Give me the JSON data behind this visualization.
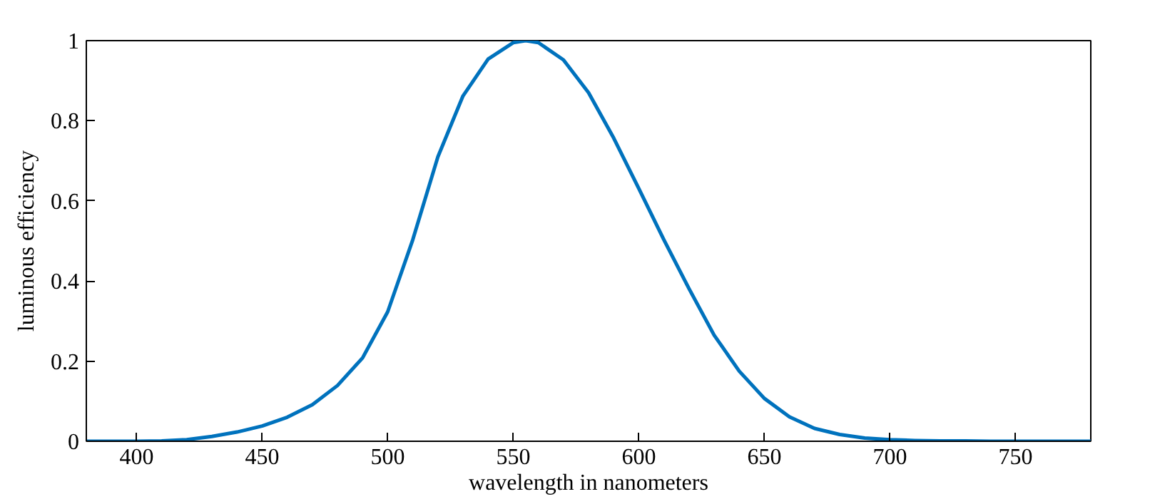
{
  "chart_data": {
    "type": "line",
    "xlabel": "wavelength in nanometers",
    "ylabel": "luminous efficiency",
    "x": [
      380,
      390,
      400,
      410,
      420,
      430,
      440,
      450,
      460,
      470,
      480,
      490,
      500,
      510,
      520,
      530,
      540,
      550,
      555,
      560,
      570,
      580,
      590,
      600,
      610,
      620,
      630,
      640,
      650,
      660,
      670,
      680,
      690,
      700,
      710,
      720,
      730,
      740,
      750,
      760,
      770,
      780
    ],
    "series": [
      {
        "color": "#0072bd",
        "values": [
          0.0,
          0.0,
          0.0,
          0.001,
          0.004,
          0.012,
          0.023,
          0.038,
          0.06,
          0.091,
          0.139,
          0.208,
          0.323,
          0.503,
          0.71,
          0.862,
          0.954,
          0.995,
          1.0,
          0.995,
          0.952,
          0.87,
          0.757,
          0.631,
          0.503,
          0.381,
          0.265,
          0.175,
          0.107,
          0.061,
          0.032,
          0.017,
          0.008,
          0.004,
          0.002,
          0.001,
          0.001,
          0.0,
          0.0,
          0.0,
          0.0,
          0.0
        ]
      }
    ],
    "xlim": [
      380,
      780
    ],
    "ylim": [
      0,
      1
    ],
    "xticks": [
      400,
      450,
      500,
      550,
      600,
      650,
      700,
      750
    ],
    "yticks": [
      0,
      0.2,
      0.4,
      0.6,
      0.8,
      1
    ],
    "grid": false,
    "line_style": "solid",
    "marker": "none"
  }
}
